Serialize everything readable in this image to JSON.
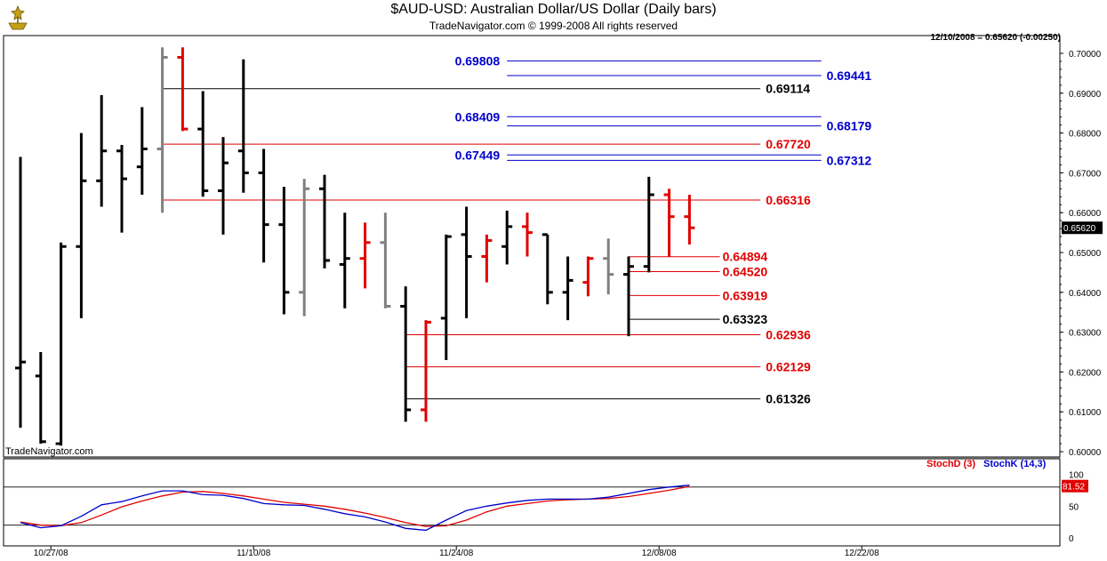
{
  "header": {
    "title": "$AUD-USD:  Australian Dollar/US Dollar  (Daily bars)",
    "subtitle": "TradeNavigator.com © 1999-2008 All rights reserved",
    "last_quote": "12/10/2008 = 0.65620 (-0.00250)",
    "watermark": "TradeNavigator.com"
  },
  "colors": {
    "up_bar": "#000000",
    "down_bar": "#e00000",
    "neutral_bar": "#808080",
    "blue_level": "#0000cc",
    "red_level": "#e00000",
    "black_level": "#000000",
    "stoch_d": "#e00000",
    "stoch_k": "#0000cc",
    "price_tag_bg": "#000000",
    "stoch_tag_bg": "#e00000"
  },
  "chart_data": {
    "type": "ohlc",
    "title": "$AUD-USD:  Australian Dollar/US Dollar  (Daily bars)",
    "y_axis": {
      "min": 0.595,
      "max": 0.705,
      "ticks": [
        "0.70000",
        "0.69000",
        "0.68000",
        "0.67000",
        "0.66000",
        "0.65000",
        "0.64000",
        "0.63000",
        "0.62000",
        "0.61000",
        "0.60000"
      ],
      "last_price_label": "0.65620"
    },
    "x_axis": {
      "date_ticks": [
        {
          "label": "10/27/08",
          "bar": 1.5
        },
        {
          "label": "11/10/08",
          "bar": 11.5
        },
        {
          "label": "11/24/08",
          "bar": 21.5
        },
        {
          "label": "12/08/08",
          "bar": 31.5
        },
        {
          "label": "12/22/08",
          "bar": 41.5
        }
      ]
    },
    "bars": [
      {
        "o": 0.621,
        "h": 0.674,
        "l": 0.606,
        "c": 0.6225,
        "color": "black"
      },
      {
        "o": 0.619,
        "h": 0.625,
        "l": 0.602,
        "c": 0.6025,
        "color": "black"
      },
      {
        "o": 0.602,
        "h": 0.6525,
        "l": 0.6015,
        "c": 0.6515,
        "color": "black"
      },
      {
        "o": 0.6515,
        "h": 0.68,
        "l": 0.6335,
        "c": 0.668,
        "color": "black"
      },
      {
        "o": 0.668,
        "h": 0.6895,
        "l": 0.6615,
        "c": 0.6755,
        "color": "black"
      },
      {
        "o": 0.6755,
        "h": 0.677,
        "l": 0.655,
        "c": 0.6685,
        "color": "black"
      },
      {
        "o": 0.6715,
        "h": 0.6865,
        "l": 0.6645,
        "c": 0.676,
        "color": "black"
      },
      {
        "o": 0.676,
        "h": 0.7015,
        "l": 0.66,
        "c": 0.699,
        "color": "gray"
      },
      {
        "o": 0.699,
        "h": 0.7015,
        "l": 0.6805,
        "c": 0.681,
        "color": "red"
      },
      {
        "o": 0.681,
        "h": 0.6905,
        "l": 0.664,
        "c": 0.6655,
        "color": "black"
      },
      {
        "o": 0.6655,
        "h": 0.679,
        "l": 0.6545,
        "c": 0.6725,
        "color": "black"
      },
      {
        "o": 0.6755,
        "h": 0.6985,
        "l": 0.665,
        "c": 0.67,
        "color": "black"
      },
      {
        "o": 0.67,
        "h": 0.676,
        "l": 0.6475,
        "c": 0.657,
        "color": "black"
      },
      {
        "o": 0.657,
        "h": 0.6665,
        "l": 0.6345,
        "c": 0.64,
        "color": "black"
      },
      {
        "o": 0.64,
        "h": 0.6685,
        "l": 0.634,
        "c": 0.666,
        "color": "gray"
      },
      {
        "o": 0.666,
        "h": 0.6695,
        "l": 0.646,
        "c": 0.648,
        "color": "black"
      },
      {
        "o": 0.647,
        "h": 0.66,
        "l": 0.636,
        "c": 0.6485,
        "color": "black"
      },
      {
        "o": 0.6485,
        "h": 0.6575,
        "l": 0.641,
        "c": 0.6525,
        "color": "red"
      },
      {
        "o": 0.6525,
        "h": 0.66,
        "l": 0.636,
        "c": 0.6365,
        "color": "gray"
      },
      {
        "o": 0.6365,
        "h": 0.6415,
        "l": 0.6075,
        "c": 0.6105,
        "color": "black"
      },
      {
        "o": 0.6105,
        "h": 0.633,
        "l": 0.6075,
        "c": 0.6325,
        "color": "red"
      },
      {
        "o": 0.6335,
        "h": 0.6545,
        "l": 0.623,
        "c": 0.654,
        "color": "black"
      },
      {
        "o": 0.6545,
        "h": 0.6615,
        "l": 0.6335,
        "c": 0.649,
        "color": "black"
      },
      {
        "o": 0.649,
        "h": 0.6545,
        "l": 0.6425,
        "c": 0.653,
        "color": "red"
      },
      {
        "o": 0.6515,
        "h": 0.6605,
        "l": 0.647,
        "c": 0.6565,
        "color": "black"
      },
      {
        "o": 0.6565,
        "h": 0.66,
        "l": 0.649,
        "c": 0.655,
        "color": "red"
      },
      {
        "o": 0.6545,
        "h": 0.6545,
        "l": 0.637,
        "c": 0.64,
        "color": "black"
      },
      {
        "o": 0.64,
        "h": 0.649,
        "l": 0.633,
        "c": 0.643,
        "color": "black"
      },
      {
        "o": 0.6425,
        "h": 0.649,
        "l": 0.639,
        "c": 0.6485,
        "color": "red"
      },
      {
        "o": 0.6485,
        "h": 0.6535,
        "l": 0.6395,
        "c": 0.6445,
        "color": "gray"
      },
      {
        "o": 0.6445,
        "h": 0.649,
        "l": 0.629,
        "c": 0.6465,
        "color": "black"
      },
      {
        "o": 0.6465,
        "h": 0.669,
        "l": 0.645,
        "c": 0.6645,
        "color": "black"
      },
      {
        "o": 0.6645,
        "h": 0.666,
        "l": 0.649,
        "c": 0.659,
        "color": "red"
      },
      {
        "o": 0.659,
        "h": 0.6645,
        "l": 0.652,
        "c": 0.6562,
        "color": "red"
      }
    ],
    "levels": [
      {
        "value": 0.69808,
        "label": "0.69808",
        "color": "blue",
        "from_bar": 24.0,
        "to_bar": 39.5,
        "label_side": "left"
      },
      {
        "value": 0.69441,
        "label": "0.69441",
        "color": "blue",
        "from_bar": 24.0,
        "to_bar": 39.5,
        "label_side": "right"
      },
      {
        "value": 0.69114,
        "label": "0.69114",
        "color": "black",
        "from_bar": 7.0,
        "to_bar": 36.5,
        "label_side": "right"
      },
      {
        "value": 0.68409,
        "label": "0.68409",
        "color": "blue",
        "from_bar": 24.0,
        "to_bar": 39.5,
        "label_side": "left"
      },
      {
        "value": 0.68179,
        "label": "0.68179",
        "color": "blue",
        "from_bar": 24.0,
        "to_bar": 39.5,
        "label_side": "right"
      },
      {
        "value": 0.6772,
        "label": "0.67720",
        "color": "red",
        "from_bar": 7.0,
        "to_bar": 36.5,
        "label_side": "right"
      },
      {
        "value": 0.67449,
        "label": "0.67449",
        "color": "blue",
        "from_bar": 24.0,
        "to_bar": 39.5,
        "label_side": "left"
      },
      {
        "value": 0.67312,
        "label": "0.67312",
        "color": "blue",
        "from_bar": 24.0,
        "to_bar": 39.5,
        "label_side": "right"
      },
      {
        "value": 0.66316,
        "label": "0.66316",
        "color": "red",
        "from_bar": 7.0,
        "to_bar": 36.5,
        "label_side": "right"
      },
      {
        "value": 0.64894,
        "label": "0.64894",
        "color": "red",
        "from_bar": 30.0,
        "to_bar": 34.5,
        "label_side": "right"
      },
      {
        "value": 0.6452,
        "label": "0.64520",
        "color": "red",
        "from_bar": 30.0,
        "to_bar": 34.5,
        "label_side": "right"
      },
      {
        "value": 0.63919,
        "label": "0.63919",
        "color": "red",
        "from_bar": 30.0,
        "to_bar": 34.5,
        "label_side": "right"
      },
      {
        "value": 0.63323,
        "label": "0.63323",
        "color": "black",
        "from_bar": 30.0,
        "to_bar": 34.5,
        "label_side": "right"
      },
      {
        "value": 0.62936,
        "label": "0.62936",
        "color": "red",
        "from_bar": 19.0,
        "to_bar": 36.5,
        "label_side": "right"
      },
      {
        "value": 0.62129,
        "label": "0.62129",
        "color": "red",
        "from_bar": 19.0,
        "to_bar": 36.5,
        "label_side": "right"
      },
      {
        "value": 0.61326,
        "label": "0.61326",
        "color": "black",
        "from_bar": 19.0,
        "to_bar": 36.5,
        "label_side": "right"
      }
    ],
    "oscillator": {
      "legend": [
        {
          "name": "StochD (3)",
          "color": "red"
        },
        {
          "name": "StochK (14,3)",
          "color": "blue"
        }
      ],
      "y_ticks": [
        "100",
        "50",
        "0"
      ],
      "ref_lines": [
        80,
        20
      ],
      "last_value_label": "81.52",
      "stoch_k": [
        24,
        16,
        19,
        34,
        52,
        57,
        66,
        74,
        74,
        68,
        67,
        62,
        54,
        52,
        51,
        45,
        38,
        33,
        25,
        15,
        12,
        28,
        43,
        50,
        55,
        59,
        61,
        61,
        61,
        64,
        70,
        76,
        80,
        83
      ],
      "stoch_d": [
        25,
        20,
        19,
        24,
        36,
        49,
        58,
        66,
        72,
        73,
        70,
        66,
        61,
        56,
        53,
        50,
        45,
        39,
        32,
        24,
        18,
        19,
        28,
        41,
        50,
        54,
        58,
        60,
        61,
        62,
        65,
        70,
        75,
        81
      ]
    }
  }
}
